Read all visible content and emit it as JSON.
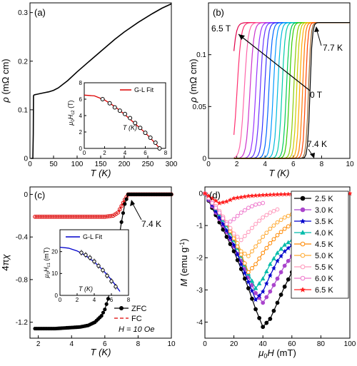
{
  "panels": {
    "a": {
      "letter": "(a)"
    },
    "b": {
      "letter": "(b)"
    },
    "c": {
      "letter": "(c)"
    },
    "d": {
      "letter": "(d)"
    }
  },
  "chart_data": [
    {
      "id": "a",
      "type": "line",
      "letter": "(a)",
      "xlabel": "T (K)",
      "ylabel": "ρ (mΩ cm)",
      "xlim": [
        0,
        300
      ],
      "ylim": [
        0,
        0.32
      ],
      "xticks": [
        0,
        50,
        100,
        150,
        200,
        250,
        300
      ],
      "yticks": [
        0.0,
        0.1,
        0.2,
        0.3
      ],
      "series": [
        {
          "color": "#000000",
          "x": [
            1.8,
            6,
            7,
            7.4,
            8,
            10,
            15,
            20,
            30,
            40,
            50,
            60,
            80,
            100,
            120,
            150,
            180,
            200,
            230,
            260,
            280,
            300
          ],
          "y": [
            0.0,
            0.0,
            0.05,
            0.128,
            0.13,
            0.131,
            0.132,
            0.133,
            0.135,
            0.137,
            0.14,
            0.145,
            0.16,
            0.178,
            0.195,
            0.22,
            0.245,
            0.26,
            0.28,
            0.298,
            0.309,
            0.318
          ]
        }
      ],
      "inset": {
        "xlabel": "T (K)",
        "ylabel": "μ0Hc2 (T)",
        "xlim": [
          0,
          8
        ],
        "ylim": [
          0,
          8
        ],
        "xticks": [
          0,
          2,
          4,
          6,
          8
        ],
        "yticks": [
          0,
          2,
          4,
          6,
          8
        ],
        "legend": "G-L Fit",
        "fit": {
          "color": "#dd0000",
          "x": [
            0,
            1,
            2,
            3,
            4,
            5,
            6,
            7,
            7.4
          ],
          "y": [
            6.5,
            6.4,
            5.9,
            5.1,
            4.1,
            3.0,
            1.9,
            0.6,
            0.0
          ]
        },
        "points": {
          "x": [
            1.8,
            2.5,
            3.0,
            3.5,
            4.0,
            4.5,
            5.0,
            5.5,
            6.0,
            6.5,
            7.0,
            7.4
          ],
          "y": [
            6.0,
            5.5,
            5.0,
            4.6,
            4.2,
            3.7,
            3.1,
            2.5,
            1.9,
            1.3,
            0.7,
            0.0
          ]
        }
      }
    },
    {
      "id": "b",
      "type": "line",
      "letter": "(b)",
      "xlabel": "T (K)",
      "ylabel": "ρ (mΩ cm)",
      "xlim": [
        0,
        10
      ],
      "ylim": [
        0,
        0.15
      ],
      "xticks": [
        0,
        2,
        4,
        6,
        8,
        10
      ],
      "yticks": [
        0.0,
        0.05,
        0.1
      ],
      "annotations": [
        "6.5 T",
        "7.7 K",
        "0 T",
        "7.4 K"
      ],
      "tc_values": [
        2.0,
        2.4,
        2.9,
        3.3,
        3.7,
        4.0,
        4.3,
        4.6,
        4.9,
        5.2,
        5.5,
        5.8,
        6.0,
        6.3,
        6.5,
        6.7,
        6.9,
        7.1,
        7.3,
        7.4
      ],
      "colors": [
        "#e0004a",
        "#ff3070",
        "#ff66aa",
        "#cc33cc",
        "#9933ff",
        "#6633ff",
        "#3333ff",
        "#0066ff",
        "#0099ff",
        "#00bbdd",
        "#00ccaa",
        "#00cc55",
        "#33cc00",
        "#88cc00",
        "#cccc00",
        "#ffaa00",
        "#ff7700",
        "#ff4400",
        "#996633",
        "#000000"
      ],
      "normal_value": 0.131
    },
    {
      "id": "c",
      "type": "line",
      "letter": "(c)",
      "xlabel": "T (K)",
      "ylabel": "4πχ",
      "xlim": [
        1.5,
        10
      ],
      "ylim": [
        -1.35,
        0.07
      ],
      "xticks": [
        2,
        4,
        6,
        8,
        10
      ],
      "yticks": [
        0.0,
        -0.4,
        -0.8,
        -1.2
      ],
      "annotation": "7.4 K",
      "legend": [
        "ZFC",
        "FC",
        "H = 10 Oe"
      ],
      "series": [
        {
          "name": "ZFC",
          "color": "#000000",
          "x": [
            1.8,
            2.0,
            2.5,
            3.0,
            3.5,
            4.0,
            4.5,
            5.0,
            5.4,
            5.8,
            6.0,
            6.2,
            6.4,
            6.6,
            6.8,
            7.0,
            7.2,
            7.4,
            7.6,
            8.0,
            9.0,
            10.0
          ],
          "y": [
            -1.26,
            -1.26,
            -1.26,
            -1.26,
            -1.255,
            -1.25,
            -1.245,
            -1.23,
            -1.2,
            -1.14,
            -1.08,
            -0.98,
            -0.84,
            -0.66,
            -0.46,
            -0.26,
            -0.09,
            0.0,
            0.0,
            0.0,
            0.0,
            0.0
          ]
        },
        {
          "name": "FC",
          "color": "#dd0000",
          "x": [
            1.8,
            2.5,
            3.0,
            4.0,
            5.0,
            6.0,
            6.5,
            6.8,
            7.0,
            7.2,
            7.4,
            7.6,
            8.0,
            9.0,
            10.0
          ],
          "y": [
            -0.21,
            -0.21,
            -0.21,
            -0.21,
            -0.21,
            -0.21,
            -0.2,
            -0.17,
            -0.11,
            -0.05,
            0.0,
            0.0,
            0.0,
            0.0,
            0.0
          ]
        }
      ],
      "inset": {
        "xlabel": "T (K)",
        "ylabel": "μ0Hc1 (mT)",
        "xlim": [
          0,
          8
        ],
        "ylim": [
          0,
          30
        ],
        "xticks": [
          0,
          2,
          4,
          6,
          8
        ],
        "yticks": [
          0,
          10,
          20
        ],
        "legend": "G-L Fit",
        "fit": {
          "color": "#0000cc",
          "x": [
            0,
            1,
            2,
            3,
            4,
            5,
            6,
            6.5,
            7.0
          ],
          "y": [
            22,
            21.6,
            20.3,
            18.2,
            15.3,
            11.6,
            7.1,
            4.5,
            1.8
          ]
        },
        "points": {
          "x": [
            2.5,
            3.0,
            3.5,
            4.0,
            4.5,
            5.0,
            5.5,
            6.0,
            6.5
          ],
          "y": [
            19.5,
            18.5,
            17.2,
            15.5,
            13.5,
            11.5,
            9.0,
            6.5,
            4.0
          ]
        }
      }
    },
    {
      "id": "d",
      "type": "line",
      "letter": "(d)",
      "xlabel": "μ0H (mT)",
      "ylabel": "M (emu g-1)",
      "xlim": [
        0,
        100
      ],
      "ylim": [
        -4.5,
        0.2
      ],
      "xticks": [
        0,
        20,
        40,
        60,
        80,
        100
      ],
      "yticks": [
        0,
        -1,
        -2,
        -3,
        -4
      ],
      "series": [
        {
          "name": "2.5 K",
          "color": "#000000",
          "marker": "circle",
          "filled": true,
          "x": [
            0,
            5,
            10,
            15,
            20,
            25,
            30,
            35,
            40,
            45,
            50,
            55,
            60,
            65
          ],
          "y": [
            0,
            -0.45,
            -0.9,
            -1.35,
            -1.8,
            -2.35,
            -2.95,
            -3.6,
            -4.15,
            -3.9,
            -3.4,
            -2.9,
            -2.45,
            -2.1
          ]
        },
        {
          "name": "3.0 K",
          "color": "#aa44cc",
          "marker": "circle",
          "filled": true,
          "x": [
            0,
            5,
            10,
            15,
            20,
            25,
            30,
            35,
            40,
            45,
            50,
            55,
            60,
            65,
            70
          ],
          "y": [
            0,
            -0.4,
            -0.8,
            -1.2,
            -1.65,
            -2.1,
            -2.6,
            -3.1,
            -3.4,
            -3.05,
            -2.65,
            -2.25,
            -1.95,
            -1.75,
            -1.6
          ]
        },
        {
          "name": "3.5 K",
          "color": "#0000cc",
          "marker": "star",
          "filled": true,
          "x": [
            0,
            5,
            10,
            15,
            20,
            25,
            30,
            35,
            40,
            45,
            50,
            55,
            60,
            65,
            70,
            75,
            80
          ],
          "y": [
            0,
            -0.35,
            -0.75,
            -1.15,
            -1.6,
            -2.2,
            -2.75,
            -3.3,
            -3.05,
            -2.55,
            -2.1,
            -1.8,
            -1.6,
            -1.5,
            -1.4,
            -1.3,
            -1.25
          ]
        },
        {
          "name": "4.0 K",
          "color": "#00bbaa",
          "marker": "triangle",
          "filled": true,
          "x": [
            0,
            5,
            10,
            15,
            20,
            25,
            30,
            35,
            40,
            45,
            50,
            55,
            60,
            65,
            70
          ],
          "y": [
            0,
            -0.3,
            -0.65,
            -1.0,
            -1.45,
            -1.95,
            -2.5,
            -2.95,
            -2.65,
            -2.2,
            -1.85,
            -1.6,
            -1.45,
            -1.3,
            -1.2
          ]
        },
        {
          "name": "4.5 K",
          "color": "#ff8800",
          "marker": "circle",
          "filled": false,
          "x": [
            0,
            5,
            10,
            15,
            20,
            25,
            30,
            35,
            40,
            45,
            50,
            55,
            60,
            65
          ],
          "y": [
            0,
            -0.3,
            -0.6,
            -0.95,
            -1.4,
            -1.9,
            -2.45,
            -2.2,
            -1.85,
            -1.55,
            -1.3,
            -1.1,
            -0.95,
            -0.85
          ]
        },
        {
          "name": "5.0 K",
          "color": "#ffaa33",
          "marker": "circle",
          "filled": false,
          "x": [
            0,
            5,
            10,
            15,
            20,
            25,
            30,
            35,
            40,
            45,
            50,
            55,
            60
          ],
          "y": [
            0,
            -0.25,
            -0.55,
            -0.9,
            -1.3,
            -1.8,
            -1.95,
            -1.65,
            -1.35,
            -1.1,
            -0.9,
            -0.75,
            -0.65
          ]
        },
        {
          "name": "5.5 K",
          "color": "#ff99bb",
          "marker": "circle",
          "filled": false,
          "x": [
            0,
            5,
            10,
            15,
            20,
            25,
            30,
            35,
            40,
            45,
            50
          ],
          "y": [
            0,
            -0.25,
            -0.55,
            -0.9,
            -1.25,
            -1.45,
            -1.2,
            -0.95,
            -0.75,
            -0.6,
            -0.5
          ]
        },
        {
          "name": "6.0 K",
          "color": "#ee77cc",
          "marker": "circle",
          "filled": false,
          "x": [
            0,
            5,
            10,
            15,
            20,
            25,
            30,
            35,
            40
          ],
          "y": [
            0,
            -0.3,
            -0.6,
            -0.95,
            -0.8,
            -0.6,
            -0.45,
            -0.35,
            -0.3
          ]
        },
        {
          "name": "6.5 K",
          "color": "#ff2222",
          "marker": "star",
          "filled": true,
          "x": [
            0,
            5,
            10,
            15,
            20,
            30,
            40,
            50,
            60,
            70,
            80,
            90,
            100
          ],
          "y": [
            0,
            -0.15,
            -0.3,
            -0.25,
            -0.15,
            -0.08,
            -0.05,
            -0.03,
            -0.02,
            -0.01,
            0,
            0,
            0
          ]
        }
      ]
    }
  ]
}
